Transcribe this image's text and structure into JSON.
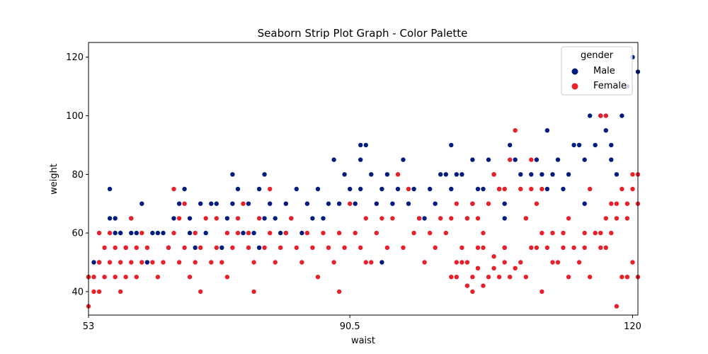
{
  "chart_data": {
    "type": "scatter",
    "subtype": "strip",
    "title": "Seaborn Strip Plot Graph - Color Palette",
    "xlabel": "waist",
    "ylabel": "weight",
    "x_scale": "categorical",
    "x_tick_labels": [
      "53",
      "90.5",
      "120"
    ],
    "xlim": [
      53,
      156
    ],
    "ylim": [
      32,
      125
    ],
    "y_ticks": [
      40,
      60,
      80,
      100,
      120
    ],
    "grid": false,
    "legend": {
      "title": "gender",
      "position": "top-right",
      "entries": [
        "Male",
        "Female"
      ]
    },
    "series": [
      {
        "name": "Male",
        "color": "#001c7f",
        "points": [
          [
            53,
            45
          ],
          [
            54,
            50
          ],
          [
            55,
            50
          ],
          [
            57,
            75
          ],
          [
            57,
            65
          ],
          [
            58,
            65
          ],
          [
            58,
            60
          ],
          [
            59,
            60
          ],
          [
            60,
            55
          ],
          [
            61,
            60
          ],
          [
            61,
            65
          ],
          [
            62,
            60
          ],
          [
            63,
            70
          ],
          [
            64,
            50
          ],
          [
            65,
            60
          ],
          [
            66,
            60
          ],
          [
            67,
            60
          ],
          [
            68,
            55
          ],
          [
            69,
            65
          ],
          [
            70,
            70
          ],
          [
            71,
            75
          ],
          [
            72,
            65
          ],
          [
            72,
            60
          ],
          [
            73,
            55
          ],
          [
            74,
            70
          ],
          [
            75,
            60
          ],
          [
            76,
            70
          ],
          [
            77,
            70
          ],
          [
            78,
            55
          ],
          [
            79,
            65
          ],
          [
            80,
            70
          ],
          [
            80,
            80
          ],
          [
            81,
            75
          ],
          [
            82,
            60
          ],
          [
            83,
            70
          ],
          [
            84,
            60
          ],
          [
            85,
            75
          ],
          [
            85,
            55
          ],
          [
            86,
            80
          ],
          [
            86,
            65
          ],
          [
            87,
            70
          ],
          [
            88,
            65
          ],
          [
            89,
            60
          ],
          [
            90,
            70
          ],
          [
            90,
            60
          ],
          [
            91,
            65
          ],
          [
            92,
            75
          ],
          [
            93,
            60
          ],
          [
            94,
            70
          ],
          [
            95,
            65
          ],
          [
            96,
            75
          ],
          [
            97,
            65
          ],
          [
            98,
            70
          ],
          [
            99,
            85
          ],
          [
            100,
            70
          ],
          [
            101,
            80
          ],
          [
            102,
            75
          ],
          [
            103,
            70
          ],
          [
            104,
            90
          ],
          [
            104,
            75
          ],
          [
            104,
            85
          ],
          [
            105,
            90
          ],
          [
            106,
            80
          ],
          [
            107,
            70
          ],
          [
            108,
            75
          ],
          [
            108,
            50
          ],
          [
            109,
            80
          ],
          [
            110,
            70
          ],
          [
            111,
            75
          ],
          [
            112,
            85
          ],
          [
            113,
            70
          ],
          [
            114,
            75
          ],
          [
            115,
            65
          ],
          [
            116,
            65
          ],
          [
            117,
            75
          ],
          [
            118,
            70
          ],
          [
            119,
            80
          ],
          [
            120,
            80
          ],
          [
            121,
            90
          ],
          [
            121,
            75
          ],
          [
            122,
            80
          ],
          [
            123,
            80
          ],
          [
            124,
            65
          ],
          [
            125,
            85
          ],
          [
            125,
            70
          ],
          [
            126,
            75
          ],
          [
            127,
            75
          ],
          [
            128,
            85
          ],
          [
            129,
            80
          ],
          [
            130,
            75
          ],
          [
            131,
            70
          ],
          [
            131,
            65
          ],
          [
            131,
            55
          ],
          [
            132,
            90
          ],
          [
            133,
            85
          ],
          [
            134,
            80
          ],
          [
            135,
            65
          ],
          [
            136,
            80
          ],
          [
            137,
            85
          ],
          [
            138,
            80
          ],
          [
            139,
            95
          ],
          [
            139,
            75
          ],
          [
            140,
            80
          ],
          [
            141,
            85
          ],
          [
            142,
            75
          ],
          [
            143,
            80
          ],
          [
            144,
            90
          ],
          [
            145,
            90
          ],
          [
            146,
            85
          ],
          [
            146,
            70
          ],
          [
            147,
            100
          ],
          [
            148,
            90
          ],
          [
            149,
            100
          ],
          [
            150,
            95
          ],
          [
            151,
            85
          ],
          [
            151,
            90
          ],
          [
            152,
            80
          ],
          [
            153,
            100
          ],
          [
            154,
            110
          ],
          [
            155,
            120
          ],
          [
            156,
            115
          ]
        ]
      },
      {
        "name": "Female",
        "color": "#e8202a",
        "points": [
          [
            53,
            35
          ],
          [
            53,
            45
          ],
          [
            54,
            40
          ],
          [
            54,
            45
          ],
          [
            55,
            40
          ],
          [
            55,
            50
          ],
          [
            55,
            60
          ],
          [
            56,
            45
          ],
          [
            56,
            55
          ],
          [
            57,
            50
          ],
          [
            57,
            60
          ],
          [
            58,
            55
          ],
          [
            58,
            45
          ],
          [
            59,
            50
          ],
          [
            59,
            40
          ],
          [
            60,
            45
          ],
          [
            60,
            55
          ],
          [
            61,
            50
          ],
          [
            61,
            65
          ],
          [
            62,
            55
          ],
          [
            62,
            45
          ],
          [
            63,
            50
          ],
          [
            63,
            60
          ],
          [
            64,
            55
          ],
          [
            65,
            50
          ],
          [
            66,
            45
          ],
          [
            67,
            50
          ],
          [
            68,
            55
          ],
          [
            69,
            60
          ],
          [
            69,
            75
          ],
          [
            70,
            50
          ],
          [
            70,
            65
          ],
          [
            71,
            55
          ],
          [
            71,
            70
          ],
          [
            72,
            45
          ],
          [
            73,
            50
          ],
          [
            73,
            60
          ],
          [
            74,
            40
          ],
          [
            74,
            55
          ],
          [
            75,
            65
          ],
          [
            76,
            50
          ],
          [
            77,
            55
          ],
          [
            77,
            65
          ],
          [
            78,
            50
          ],
          [
            79,
            45
          ],
          [
            79,
            60
          ],
          [
            80,
            55
          ],
          [
            81,
            60
          ],
          [
            81,
            65
          ],
          [
            82,
            70
          ],
          [
            83,
            55
          ],
          [
            83,
            60
          ],
          [
            84,
            50
          ],
          [
            84,
            40
          ],
          [
            85,
            65
          ],
          [
            86,
            55
          ],
          [
            87,
            75
          ],
          [
            87,
            60
          ],
          [
            88,
            50
          ],
          [
            89,
            55
          ],
          [
            90,
            60
          ],
          [
            91,
            65
          ],
          [
            92,
            55
          ],
          [
            93,
            50
          ],
          [
            94,
            60
          ],
          [
            95,
            55
          ],
          [
            96,
            45
          ],
          [
            97,
            60
          ],
          [
            98,
            55
          ],
          [
            99,
            50
          ],
          [
            100,
            60
          ],
          [
            100,
            40
          ],
          [
            101,
            55
          ],
          [
            102,
            70
          ],
          [
            103,
            60
          ],
          [
            104,
            55
          ],
          [
            105,
            65
          ],
          [
            105,
            50
          ],
          [
            106,
            50
          ],
          [
            107,
            60
          ],
          [
            108,
            65
          ],
          [
            109,
            55
          ],
          [
            110,
            65
          ],
          [
            111,
            80
          ],
          [
            112,
            55
          ],
          [
            113,
            75
          ],
          [
            114,
            60
          ],
          [
            115,
            65
          ],
          [
            116,
            50
          ],
          [
            117,
            60
          ],
          [
            118,
            55
          ],
          [
            119,
            65
          ],
          [
            120,
            60
          ],
          [
            121,
            65
          ],
          [
            122,
            70
          ],
          [
            123,
            55
          ],
          [
            124,
            65
          ],
          [
            125,
            70
          ],
          [
            126,
            65
          ],
          [
            127,
            60
          ],
          [
            128,
            70
          ],
          [
            129,
            80
          ],
          [
            130,
            75
          ],
          [
            131,
            75
          ],
          [
            132,
            85
          ],
          [
            133,
            95
          ],
          [
            134,
            75
          ],
          [
            135,
            65
          ],
          [
            136,
            75
          ],
          [
            136,
            85
          ],
          [
            137,
            70
          ],
          [
            138,
            75
          ],
          [
            147,
            75
          ],
          [
            149,
            100
          ],
          [
            150,
            100
          ],
          [
            151,
            70
          ],
          [
            152,
            35
          ],
          [
            153,
            45
          ],
          [
            154,
            45
          ],
          [
            155,
            50
          ],
          [
            156,
            45
          ]
        ]
      },
      {
        "name": "Female",
        "color": "#e8202a",
        "points": [
          [
            121,
            45
          ],
          [
            122,
            50
          ],
          [
            122,
            45
          ],
          [
            123,
            50
          ],
          [
            124,
            42
          ],
          [
            124,
            50
          ],
          [
            125,
            40
          ],
          [
            125,
            45
          ],
          [
            126,
            48
          ],
          [
            126,
            55
          ],
          [
            127,
            42
          ],
          [
            127,
            55
          ],
          [
            128,
            45
          ],
          [
            129,
            48
          ],
          [
            129,
            52
          ],
          [
            130,
            45
          ],
          [
            131,
            50
          ],
          [
            131,
            55
          ],
          [
            132,
            45
          ],
          [
            133,
            48
          ],
          [
            134,
            50
          ],
          [
            135,
            45
          ],
          [
            136,
            55
          ],
          [
            137,
            55
          ],
          [
            138,
            60
          ],
          [
            138,
            40
          ],
          [
            139,
            55
          ],
          [
            140,
            60
          ],
          [
            140,
            50
          ],
          [
            141,
            50
          ],
          [
            142,
            60
          ],
          [
            142,
            55
          ],
          [
            143,
            65
          ],
          [
            143,
            45
          ],
          [
            144,
            55
          ],
          [
            145,
            50
          ],
          [
            146,
            55
          ],
          [
            146,
            60
          ],
          [
            147,
            45
          ],
          [
            148,
            60
          ],
          [
            149,
            55
          ],
          [
            149,
            60
          ],
          [
            150,
            55
          ],
          [
            150,
            65
          ],
          [
            151,
            60
          ],
          [
            152,
            65
          ],
          [
            152,
            70
          ],
          [
            153,
            75
          ],
          [
            154,
            70
          ],
          [
            154,
            65
          ],
          [
            155,
            80
          ],
          [
            155,
            75
          ],
          [
            156,
            70
          ],
          [
            156,
            80
          ]
        ]
      }
    ]
  }
}
